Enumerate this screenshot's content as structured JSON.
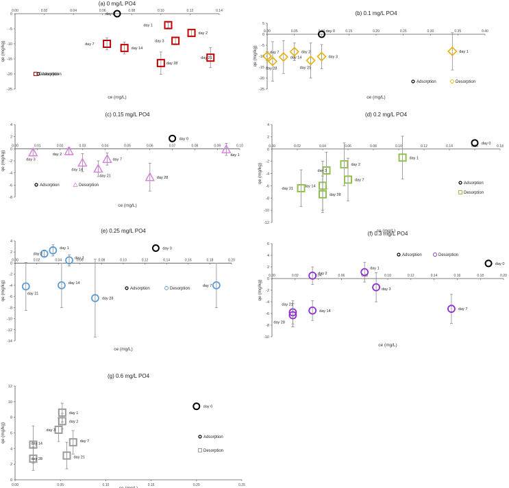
{
  "colors": {
    "axis": "#555555",
    "tick_text": "#444444",
    "error_bar": "#8a8a8a",
    "adsorption_edge": "#000000",
    "desorption": [
      "#c00000",
      "#e8b000",
      "#d97ae0",
      "#92c050",
      "#5b9bd5",
      "#8e2bd1",
      "#9a9a9a"
    ]
  },
  "chart_data": [
    {
      "type": "scatter",
      "title": "(a) 0 mg/L PO4",
      "xlabel": "ce (mg/L)",
      "ylabel": "qe (mg/kg)",
      "xlim": [
        0,
        0.14
      ],
      "ylim": [
        -25,
        0
      ],
      "xticks": [
        "0.00",
        "0.02",
        "0.04",
        "0.06",
        "0.08",
        "0.10",
        "0.12",
        "0.14"
      ],
      "yticks": [
        "0",
        "-5",
        "-10",
        "-15",
        "-20",
        "-25"
      ],
      "legend": {
        "position": "bottom-left",
        "entries": [
          "Adsorption",
          "Desorption"
        ]
      },
      "marker": "square",
      "adsorption": [
        {
          "x": 0.07,
          "y": 0.0,
          "label": "day 0"
        }
      ],
      "desorption": [
        {
          "x": 0.105,
          "y": -3.8,
          "err": 0.8,
          "label": "day 1"
        },
        {
          "x": 0.121,
          "y": -6.4,
          "err": 1.0,
          "label": "day 2"
        },
        {
          "x": 0.11,
          "y": -9.0,
          "err": 1.3,
          "label": "day 3"
        },
        {
          "x": 0.063,
          "y": -10.0,
          "err": 2.0,
          "label": "day 7"
        },
        {
          "x": 0.075,
          "y": -11.4,
          "err": 2.0,
          "label": "day 14"
        },
        {
          "x": 0.1,
          "y": -16.4,
          "err": 3.7,
          "label": "day 28"
        },
        {
          "x": 0.134,
          "y": -14.6,
          "err": 3.3,
          "label": "day 21"
        }
      ]
    },
    {
      "type": "scatter",
      "title": "(b) 0.1 mg/L PO4",
      "xlabel": "ce (mg/L)",
      "ylabel": "qe (mg/kg)",
      "xlim": [
        0,
        0.4
      ],
      "ylim": [
        -25,
        5
      ],
      "xticks": [
        "0.00",
        "0.05",
        "0.10",
        "0.15",
        "0.20",
        "0.25",
        "0.30",
        "0.35",
        "0.40"
      ],
      "yticks": [
        "5",
        "0",
        "-5",
        "-10",
        "-15",
        "-20",
        "-25"
      ],
      "legend": {
        "position": "bottom-right",
        "entries": [
          "Adsorption",
          "Desorption"
        ]
      },
      "marker": "diamond",
      "adsorption": [
        {
          "x": 0.1,
          "y": 0.0,
          "label": "day 0"
        }
      ],
      "desorption": [
        {
          "x": 0.34,
          "y": -7.8,
          "err": 8.5,
          "label": "day 1"
        },
        {
          "x": 0.05,
          "y": -8.0,
          "err": 4.0,
          "label": "day 2"
        },
        {
          "x": 0.1,
          "y": -10.2,
          "err": 5.5,
          "label": "day 3"
        },
        {
          "x": 0.0,
          "y": -10.0,
          "err": 2.0,
          "label": "day 7"
        },
        {
          "x": 0.03,
          "y": -10.4,
          "err": 7.5,
          "label": "day 14"
        },
        {
          "x": 0.08,
          "y": -12.0,
          "err": 8.0,
          "label": "day 21"
        },
        {
          "x": 0.01,
          "y": -12.4,
          "err": 9.0,
          "label": "day 28"
        }
      ]
    },
    {
      "type": "scatter",
      "title": "(c) 0.15 mg/L PO4",
      "xlabel": "ce (mg/L)",
      "ylabel": "qe (mg/kg)",
      "xlim": [
        0,
        0.1
      ],
      "ylim": [
        -8,
        4
      ],
      "xticks": [
        "0.00",
        "0.01",
        "0.02",
        "0.03",
        "0.04",
        "0.05",
        "0.06",
        "0.07",
        "0.08",
        "0.09",
        "0.10"
      ],
      "yticks": [
        "4",
        "2",
        "0",
        "-2",
        "-4",
        "-6",
        "-8"
      ],
      "legend": {
        "position": "bottom-left",
        "entries": [
          "Adsorption",
          "Desorption"
        ]
      },
      "marker": "triangle",
      "adsorption": [
        {
          "x": 0.07,
          "y": 1.7,
          "label": "day 0"
        }
      ],
      "desorption": [
        {
          "x": 0.094,
          "y": -0.1,
          "err": 1.0,
          "label": "day 1"
        },
        {
          "x": 0.024,
          "y": -0.4,
          "err": 0.6,
          "label": "day 2"
        },
        {
          "x": 0.008,
          "y": -0.6,
          "err": 0.6,
          "label": "day 3"
        },
        {
          "x": 0.041,
          "y": -1.7,
          "err": 1.0,
          "label": "day 7"
        },
        {
          "x": 0.03,
          "y": -2.3,
          "err": 1.5,
          "label": "day 14"
        },
        {
          "x": 0.037,
          "y": -3.3,
          "err": 1.3,
          "label": "day 21"
        },
        {
          "x": 0.06,
          "y": -4.7,
          "err": 2.3,
          "label": "day 28"
        }
      ]
    },
    {
      "type": "scatter",
      "title": "(d) 0.2 mg/L PO4",
      "xlabel": "ce (mg/L)",
      "ylabel": "qe (mg/kg)",
      "xlim": [
        0,
        0.18
      ],
      "ylim": [
        -12,
        4
      ],
      "xticks": [
        "0.00",
        "0.02",
        "0.04",
        "0.06",
        "0.08",
        "0.10",
        "0.12",
        "0.14",
        "0.16",
        "0.18"
      ],
      "yticks": [
        "4",
        "2",
        "0",
        "-2",
        "-4",
        "-6",
        "-8",
        "-10",
        "-12"
      ],
      "legend": {
        "position": "bottom-right",
        "entries": [
          "Adsorption",
          "Desorption"
        ]
      },
      "marker": "square",
      "adsorption": [
        {
          "x": 0.16,
          "y": 1.0,
          "label": "day 0"
        }
      ],
      "desorption": [
        {
          "x": 0.103,
          "y": -1.4,
          "err": 3.5,
          "label": "day 1"
        },
        {
          "x": 0.057,
          "y": -2.5,
          "err": 3.5,
          "label": "day 2"
        },
        {
          "x": 0.043,
          "y": -3.5,
          "err": 3.0,
          "label": "day 3"
        },
        {
          "x": 0.06,
          "y": -5.0,
          "err": 3.5,
          "label": "day 7"
        },
        {
          "x": 0.04,
          "y": -6.0,
          "err": 4.0,
          "label": "day 14"
        },
        {
          "x": 0.023,
          "y": -6.4,
          "err": 3.0,
          "label": "day 21"
        },
        {
          "x": 0.04,
          "y": -7.4,
          "err": 3.0,
          "label": "day 28"
        }
      ]
    },
    {
      "type": "scatter",
      "title": "(e) 0.25 mg/L PO4",
      "xlabel": "ce (mg/L)",
      "ylabel": "qe (mg/kg)",
      "xlim": [
        0,
        0.2
      ],
      "ylim": [
        -14,
        4
      ],
      "xticks": [
        "0.00",
        "0.02",
        "0.04",
        "0.06",
        "0.08",
        "0.10",
        "0.12",
        "0.14",
        "0.16",
        "0.18",
        "0.20"
      ],
      "yticks": [
        "4",
        "2",
        "0",
        "-2",
        "-4",
        "-6",
        "-8",
        "-10",
        "-12",
        "-14"
      ],
      "legend": {
        "position": "bottom-right",
        "entries": [
          "Adsorption",
          "Desorption"
        ]
      },
      "marker": "circle",
      "adsorption": [
        {
          "x": 0.13,
          "y": 2.7,
          "label": "day 0"
        }
      ],
      "desorption": [
        {
          "x": 0.035,
          "y": 2.3,
          "err": 1.0,
          "label": "day 1"
        },
        {
          "x": 0.027,
          "y": 1.7,
          "err": 0.5,
          "label": "day 2"
        },
        {
          "x": 0.05,
          "y": 0.5,
          "err": 1.0,
          "label": "day 3"
        },
        {
          "x": 0.186,
          "y": -4.0,
          "err": 4.0,
          "label": "day 7"
        },
        {
          "x": 0.043,
          "y": -4.0,
          "err": 4.0,
          "label": "day 14"
        },
        {
          "x": 0.01,
          "y": -4.2,
          "err": 4.3,
          "label": "day 21"
        },
        {
          "x": 0.074,
          "y": -6.3,
          "err": 7.0,
          "label": "day 28"
        }
      ]
    },
    {
      "type": "scatter",
      "title": "(f) 0.3 mg/L PO4",
      "xlabel": "ce (mg/L)",
      "ylabel": "qe (mg/kg)",
      "xlim": [
        0,
        0.2
      ],
      "ylim": [
        -10,
        6
      ],
      "xticks": [
        "0.00",
        "0.02",
        "0.04",
        "0.06",
        "0.08",
        "0.10",
        "0.12",
        "0.14",
        "0.16",
        "0.18",
        "0.20"
      ],
      "yticks": [
        "6",
        "4",
        "2",
        "0",
        "-2",
        "-4",
        "-6",
        "-8",
        "-10"
      ],
      "legend": {
        "position": "top-right",
        "entries": [
          "Adsorption",
          "Desorption"
        ]
      },
      "marker": "circle",
      "adsorption": [
        {
          "x": 0.187,
          "y": 2.6,
          "label": "day 0"
        }
      ],
      "desorption": [
        {
          "x": 0.08,
          "y": 1.1,
          "err": 1.7,
          "label": "day 1"
        },
        {
          "x": 0.035,
          "y": 0.5,
          "err": 1.5,
          "label": "day 2"
        },
        {
          "x": 0.09,
          "y": -1.5,
          "err": 2.5,
          "label": "day 3"
        },
        {
          "x": 0.155,
          "y": -5.2,
          "err": 2.5,
          "label": "day 7"
        },
        {
          "x": 0.035,
          "y": -5.5,
          "err": 1.7,
          "label": "day 14"
        },
        {
          "x": 0.018,
          "y": -5.8,
          "err": 2.0,
          "label": "day 21"
        },
        {
          "x": 0.018,
          "y": -6.3,
          "err": 2.0,
          "label": "day 28"
        }
      ]
    },
    {
      "type": "scatter",
      "title": "(g) 0.6 mg/L PO4",
      "xlabel": "ce (mg/L)",
      "ylabel": "qe (mg/kg)",
      "xlim": [
        0,
        0.25
      ],
      "ylim": [
        0,
        12
      ],
      "xticks": [
        "0.00",
        "0.05",
        "0.10",
        "0.15",
        "0.20",
        "0.25"
      ],
      "yticks": [
        "12",
        "10",
        "8",
        "6",
        "4",
        "2",
        "0"
      ],
      "legend": {
        "position": "bottom-right",
        "entries": [
          "Adsorption",
          "Desorption"
        ]
      },
      "marker": "square",
      "adsorption": [
        {
          "x": 0.2,
          "y": 9.4,
          "label": "day 0"
        }
      ],
      "desorption": [
        {
          "x": 0.052,
          "y": 8.6,
          "err": 1.2,
          "label": "day 1"
        },
        {
          "x": 0.052,
          "y": 7.5,
          "err": 1.0,
          "label": "day 2"
        },
        {
          "x": 0.048,
          "y": 6.4,
          "err": 1.5,
          "label": "day 3"
        },
        {
          "x": 0.064,
          "y": 4.8,
          "err": 1.5,
          "label": "day 7"
        },
        {
          "x": 0.02,
          "y": 4.5,
          "err": 2.4,
          "label": "day 14"
        },
        {
          "x": 0.057,
          "y": 3.1,
          "err": 1.7,
          "label": "day 21"
        },
        {
          "x": 0.02,
          "y": 2.7,
          "err": 1.5,
          "label": "day 28"
        }
      ]
    }
  ]
}
